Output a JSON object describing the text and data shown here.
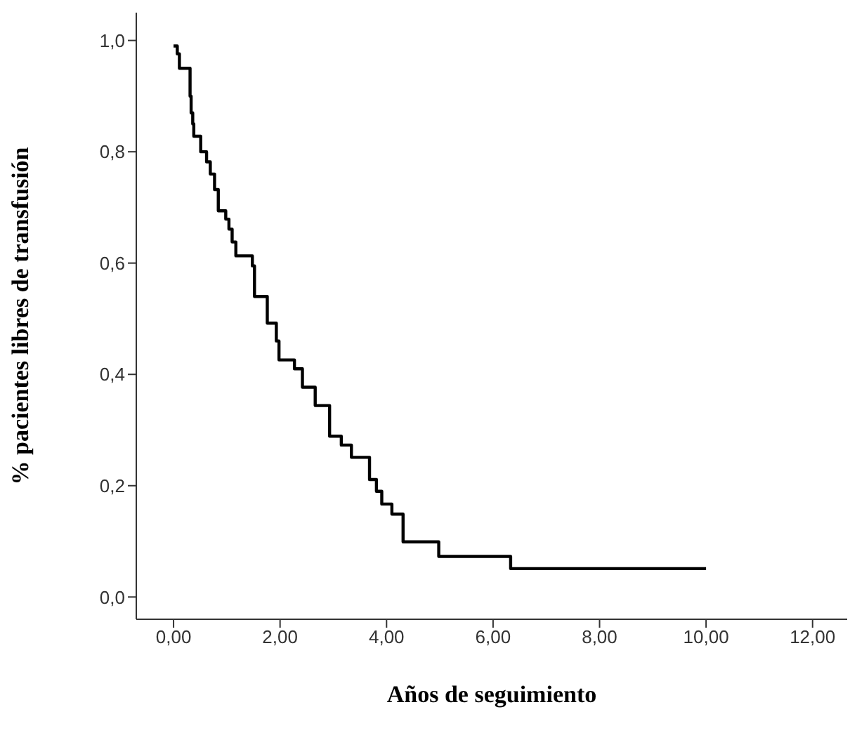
{
  "chart_data": {
    "type": "step",
    "xlabel": "Años de seguimiento",
    "ylabel": "%  pacientes libres de transfusión",
    "x": [
      0,
      0.07,
      0.11,
      0.31,
      0.33,
      0.36,
      0.38,
      0.51,
      0.62,
      0.69,
      0.77,
      0.84,
      0.98,
      1.04,
      1.1,
      1.17,
      1.48,
      1.52,
      1.76,
      1.93,
      1.98,
      2.27,
      2.42,
      2.66,
      2.93,
      3.15,
      3.34,
      3.68,
      3.81,
      3.91,
      4.1,
      4.31,
      4.98,
      6.33,
      10.0
    ],
    "series": [
      {
        "color": "#000000",
        "values": [
          0.99,
          0.976,
          0.95,
          0.9,
          0.87,
          0.85,
          0.828,
          0.8,
          0.782,
          0.76,
          0.732,
          0.694,
          0.679,
          0.661,
          0.638,
          0.613,
          0.595,
          0.54,
          0.492,
          0.46,
          0.426,
          0.41,
          0.377,
          0.344,
          0.289,
          0.273,
          0.251,
          0.211,
          0.19,
          0.167,
          0.149,
          0.099,
          0.073,
          0.051,
          0.051
        ]
      }
    ],
    "xlim": [
      -0.7,
      12.65
    ],
    "xticks": [
      {
        "value": 0,
        "label": "0,00"
      },
      {
        "value": 2,
        "label": "2,00"
      },
      {
        "value": 4,
        "label": "4,00"
      },
      {
        "value": 6,
        "label": "6,00"
      },
      {
        "value": 8,
        "label": "8,00"
      },
      {
        "value": 10,
        "label": "10,00"
      },
      {
        "value": 12,
        "label": "12,00"
      }
    ],
    "ylim": [
      -0.04,
      1.05
    ],
    "yticks": [
      {
        "value": 0,
        "label": "0,0"
      },
      {
        "value": 0.2,
        "label": "0,2"
      },
      {
        "value": 0.4,
        "label": "0,4"
      },
      {
        "value": 0.6,
        "label": "0,6"
      },
      {
        "value": 0.8,
        "label": "0,8"
      },
      {
        "value": 1,
        "label": "1,0"
      }
    ],
    "grid": false,
    "legend": false,
    "marker": "none",
    "line_style": "solid"
  }
}
